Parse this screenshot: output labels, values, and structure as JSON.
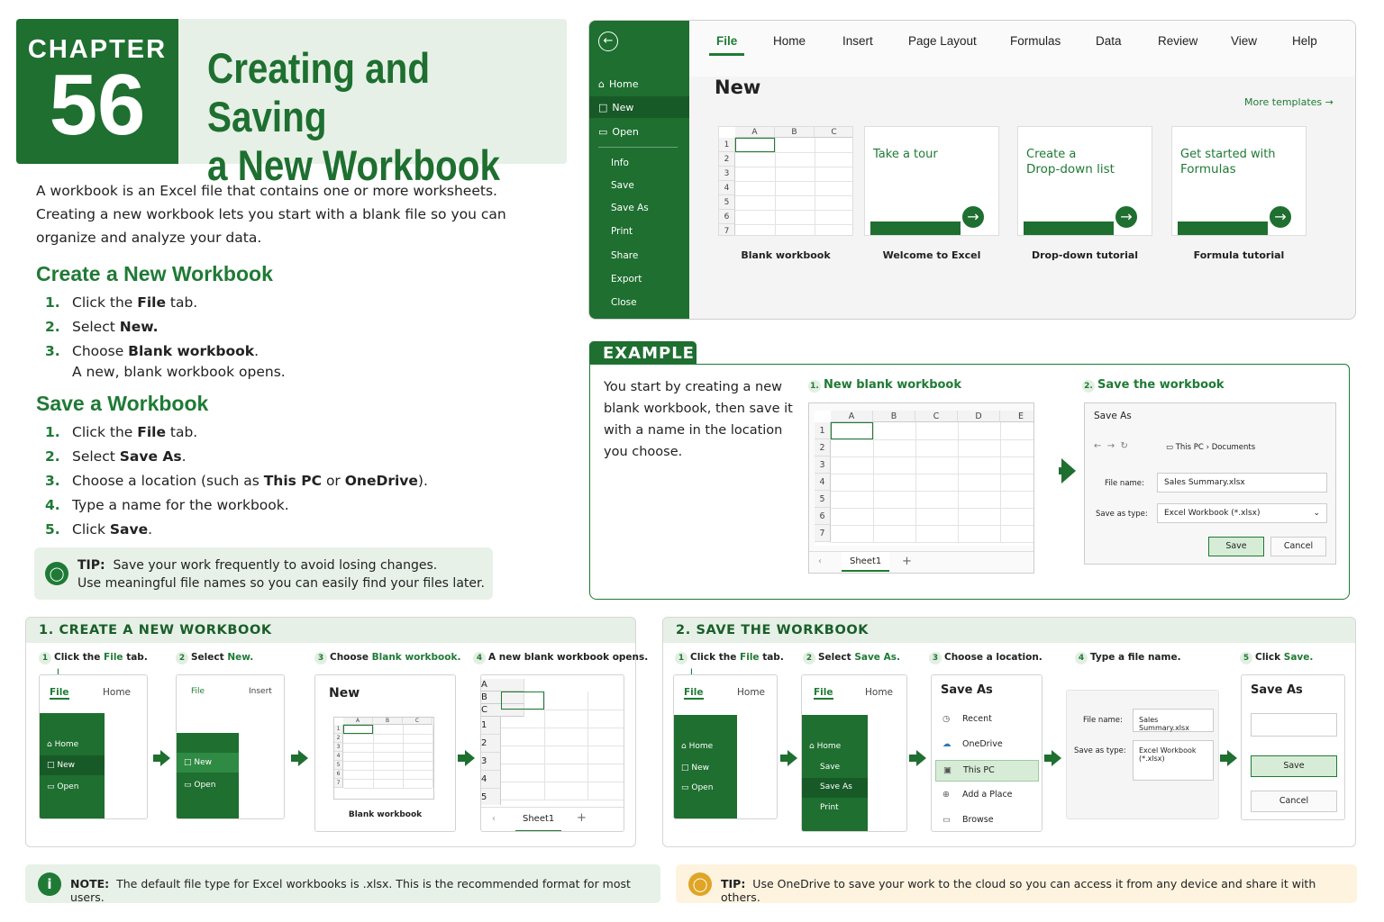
{
  "chapter": {
    "label": "CHAPTER",
    "number": "56",
    "title_line1": "Creating and Saving",
    "title_line2": "a New Workbook"
  },
  "intro": "A workbook is an Excel file that contains one or more worksheets. Creating a new workbook lets you start with a blank file so you can organize and analyze your data.",
  "create": {
    "heading": "Create a New Workbook",
    "steps": [
      {
        "n": "1.",
        "pre": "Click the ",
        "bold": "File",
        "post": " tab."
      },
      {
        "n": "2.",
        "pre": "Select ",
        "bold": "New.",
        "post": ""
      },
      {
        "n": "3.",
        "pre": "Choose ",
        "bold": "Blank workbook",
        "post": "."
      }
    ],
    "result": "A new, blank workbook opens."
  },
  "save": {
    "heading": "Save a Workbook",
    "steps": [
      {
        "n": "1.",
        "pre": "Click the ",
        "bold": "File",
        "post": " tab."
      },
      {
        "n": "2.",
        "pre": "Select ",
        "bold": "Save As",
        "post": "."
      },
      {
        "n": "3.",
        "pre": "Choose a location (such as ",
        "bold": "This PC",
        "mid": " or ",
        "bold2": "OneDrive",
        "post": ")."
      },
      {
        "n": "4.",
        "pre": "Type a name for the workbook.",
        "bold": "",
        "post": ""
      },
      {
        "n": "5.",
        "pre": "Click ",
        "bold": "Save",
        "post": "."
      }
    ]
  },
  "tip1": {
    "label": "TIP:",
    "line1": "Save your work frequently to avoid losing changes.",
    "line2": "Use meaningful file names so you can easily find your files later."
  },
  "backstage": {
    "side": {
      "home": "Home",
      "new": "New",
      "open": "Open",
      "info": "Info",
      "save": "Save",
      "save_as": "Save As",
      "print": "Print",
      "share": "Share",
      "export": "Export",
      "close": "Close"
    },
    "tabs": [
      "File",
      "Home",
      "Insert",
      "Page Layout",
      "Formulas",
      "Data",
      "Review",
      "View",
      "Help"
    ],
    "title": "New",
    "more": "More templates",
    "cards": [
      {
        "line1": "",
        "line2": "",
        "caption": "Blank workbook"
      },
      {
        "line1": "Take a tour",
        "line2": "",
        "caption": "Welcome to Excel"
      },
      {
        "line1": "Create a",
        "line2": "Drop-down list",
        "caption": "Drop-down tutorial"
      },
      {
        "line1": "Get started with",
        "line2": "Formulas",
        "caption": "Formula tutorial"
      }
    ],
    "cols": [
      "A",
      "B",
      "C"
    ],
    "rows": [
      "1",
      "2",
      "3",
      "4",
      "5",
      "6",
      "7"
    ]
  },
  "example": {
    "tab": "EXAMPLE",
    "text": "You start by creating a new blank workbook, then save it with a name in the location you choose.",
    "h1": "New blank workbook",
    "h2": "Save the workbook",
    "n1": "1.",
    "n2": "2.",
    "cols": [
      "A",
      "B",
      "C",
      "D",
      "E"
    ],
    "rows": [
      "1",
      "2",
      "3",
      "4",
      "5",
      "6",
      "7"
    ],
    "sheet": "Sheet1",
    "plus": "+",
    "dialog": {
      "title": "Save As",
      "path1": "This PC",
      "path2": "Documents",
      "file_label": "File name:",
      "file_value": "Sales Summary.xlsx",
      "type_label": "Save as type:",
      "type_value": "Excel Workbook (*.xlsx)",
      "save": "Save",
      "cancel": "Cancel"
    }
  },
  "panel1": {
    "title": "1. CREATE A NEW WORKBOOK",
    "s1": {
      "n": "1",
      "a": "Click the ",
      "g": "File",
      "b": " tab."
    },
    "s2": {
      "n": "2",
      "a": "Select ",
      "g": "New.",
      "b": ""
    },
    "s3": {
      "n": "3",
      "a": "Choose ",
      "g": "Blank workbook.",
      "b": ""
    },
    "s4": {
      "n": "4",
      "a": "A new blank workbook opens.",
      "g": "",
      "b": ""
    },
    "file": "File",
    "home_tab": "Home",
    "insert_tab": "Insert",
    "home": "Home",
    "new": "New",
    "open": "Open",
    "new_title": "New",
    "blank": "Blank workbook",
    "sheet": "Sheet1",
    "plus": "+",
    "cols": [
      "A",
      "B",
      "C"
    ],
    "rows": [
      "1",
      "2",
      "3",
      "4",
      "5",
      "6"
    ]
  },
  "panel2": {
    "title": "2. SAVE THE WORKBOOK",
    "s1": {
      "n": "1",
      "a": "Click the ",
      "g": "File",
      "b": " tab."
    },
    "s2": {
      "n": "2",
      "a": "Select ",
      "g": "Save As.",
      "b": ""
    },
    "s3": {
      "n": "3",
      "a": "Choose a location.",
      "g": "",
      "b": ""
    },
    "s4": {
      "n": "4",
      "a": "Type a file name.",
      "g": "",
      "b": ""
    },
    "s5": {
      "n": "5",
      "a": "Click ",
      "g": "Save.",
      "b": ""
    },
    "file": "File",
    "home_tab": "Home",
    "home": "Home",
    "new": "New",
    "open": "Open",
    "save": "Save",
    "save_as": "Save As",
    "print": "Print",
    "saveas_title": "Save As",
    "loc": [
      "Recent",
      "OneDrive",
      "This PC",
      "Add a Place",
      "Browse"
    ],
    "file_label": "File name:",
    "file_value": "Sales Summary.xlsx",
    "type_label": "Save as type:",
    "type_value1": "Excel Workbook",
    "type_value2": "(*.xlsx)",
    "save_btn": "Save",
    "cancel_btn": "Cancel"
  },
  "note": {
    "label": "NOTE:",
    "text": "The default file type for Excel workbooks is .xlsx. This is the recommended format for most users."
  },
  "tip2": {
    "label": "TIP:",
    "text": "Use OneDrive to save your work to the cloud so you can access it from any device and share it with others."
  }
}
